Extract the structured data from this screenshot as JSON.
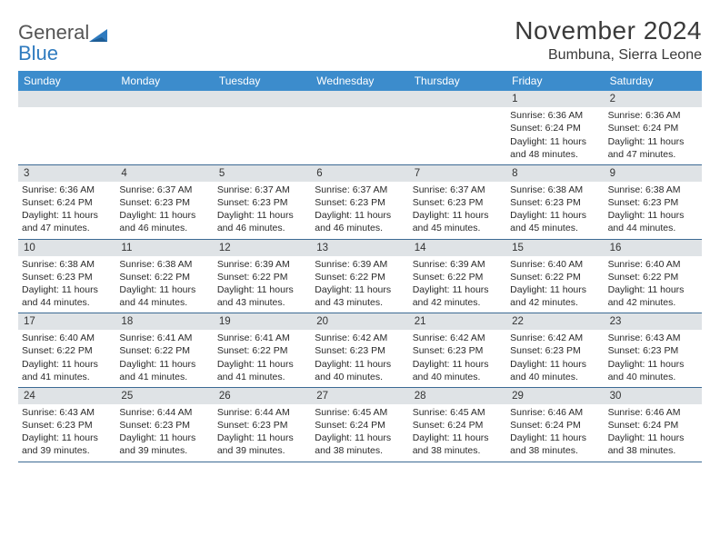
{
  "logo": {
    "line1": "General",
    "line2": "Blue"
  },
  "title": "November 2024",
  "location": "Bumbuna, Sierra Leone",
  "colors": {
    "header_bg": "#3c8ccc",
    "header_text": "#ffffff",
    "daynum_bg": "#dfe3e6",
    "row_border": "#3c6a94",
    "text": "#2a2a2a",
    "logo_gray": "#555555",
    "logo_blue": "#2f7bbf"
  },
  "day_names": [
    "Sunday",
    "Monday",
    "Tuesday",
    "Wednesday",
    "Thursday",
    "Friday",
    "Saturday"
  ],
  "weeks": [
    [
      {
        "n": "",
        "sunrise": "",
        "sunset": "",
        "daylight": ""
      },
      {
        "n": "",
        "sunrise": "",
        "sunset": "",
        "daylight": ""
      },
      {
        "n": "",
        "sunrise": "",
        "sunset": "",
        "daylight": ""
      },
      {
        "n": "",
        "sunrise": "",
        "sunset": "",
        "daylight": ""
      },
      {
        "n": "",
        "sunrise": "",
        "sunset": "",
        "daylight": ""
      },
      {
        "n": "1",
        "sunrise": "Sunrise: 6:36 AM",
        "sunset": "Sunset: 6:24 PM",
        "daylight": "Daylight: 11 hours and 48 minutes."
      },
      {
        "n": "2",
        "sunrise": "Sunrise: 6:36 AM",
        "sunset": "Sunset: 6:24 PM",
        "daylight": "Daylight: 11 hours and 47 minutes."
      }
    ],
    [
      {
        "n": "3",
        "sunrise": "Sunrise: 6:36 AM",
        "sunset": "Sunset: 6:24 PM",
        "daylight": "Daylight: 11 hours and 47 minutes."
      },
      {
        "n": "4",
        "sunrise": "Sunrise: 6:37 AM",
        "sunset": "Sunset: 6:23 PM",
        "daylight": "Daylight: 11 hours and 46 minutes."
      },
      {
        "n": "5",
        "sunrise": "Sunrise: 6:37 AM",
        "sunset": "Sunset: 6:23 PM",
        "daylight": "Daylight: 11 hours and 46 minutes."
      },
      {
        "n": "6",
        "sunrise": "Sunrise: 6:37 AM",
        "sunset": "Sunset: 6:23 PM",
        "daylight": "Daylight: 11 hours and 46 minutes."
      },
      {
        "n": "7",
        "sunrise": "Sunrise: 6:37 AM",
        "sunset": "Sunset: 6:23 PM",
        "daylight": "Daylight: 11 hours and 45 minutes."
      },
      {
        "n": "8",
        "sunrise": "Sunrise: 6:38 AM",
        "sunset": "Sunset: 6:23 PM",
        "daylight": "Daylight: 11 hours and 45 minutes."
      },
      {
        "n": "9",
        "sunrise": "Sunrise: 6:38 AM",
        "sunset": "Sunset: 6:23 PM",
        "daylight": "Daylight: 11 hours and 44 minutes."
      }
    ],
    [
      {
        "n": "10",
        "sunrise": "Sunrise: 6:38 AM",
        "sunset": "Sunset: 6:23 PM",
        "daylight": "Daylight: 11 hours and 44 minutes."
      },
      {
        "n": "11",
        "sunrise": "Sunrise: 6:38 AM",
        "sunset": "Sunset: 6:22 PM",
        "daylight": "Daylight: 11 hours and 44 minutes."
      },
      {
        "n": "12",
        "sunrise": "Sunrise: 6:39 AM",
        "sunset": "Sunset: 6:22 PM",
        "daylight": "Daylight: 11 hours and 43 minutes."
      },
      {
        "n": "13",
        "sunrise": "Sunrise: 6:39 AM",
        "sunset": "Sunset: 6:22 PM",
        "daylight": "Daylight: 11 hours and 43 minutes."
      },
      {
        "n": "14",
        "sunrise": "Sunrise: 6:39 AM",
        "sunset": "Sunset: 6:22 PM",
        "daylight": "Daylight: 11 hours and 42 minutes."
      },
      {
        "n": "15",
        "sunrise": "Sunrise: 6:40 AM",
        "sunset": "Sunset: 6:22 PM",
        "daylight": "Daylight: 11 hours and 42 minutes."
      },
      {
        "n": "16",
        "sunrise": "Sunrise: 6:40 AM",
        "sunset": "Sunset: 6:22 PM",
        "daylight": "Daylight: 11 hours and 42 minutes."
      }
    ],
    [
      {
        "n": "17",
        "sunrise": "Sunrise: 6:40 AM",
        "sunset": "Sunset: 6:22 PM",
        "daylight": "Daylight: 11 hours and 41 minutes."
      },
      {
        "n": "18",
        "sunrise": "Sunrise: 6:41 AM",
        "sunset": "Sunset: 6:22 PM",
        "daylight": "Daylight: 11 hours and 41 minutes."
      },
      {
        "n": "19",
        "sunrise": "Sunrise: 6:41 AM",
        "sunset": "Sunset: 6:22 PM",
        "daylight": "Daylight: 11 hours and 41 minutes."
      },
      {
        "n": "20",
        "sunrise": "Sunrise: 6:42 AM",
        "sunset": "Sunset: 6:23 PM",
        "daylight": "Daylight: 11 hours and 40 minutes."
      },
      {
        "n": "21",
        "sunrise": "Sunrise: 6:42 AM",
        "sunset": "Sunset: 6:23 PM",
        "daylight": "Daylight: 11 hours and 40 minutes."
      },
      {
        "n": "22",
        "sunrise": "Sunrise: 6:42 AM",
        "sunset": "Sunset: 6:23 PM",
        "daylight": "Daylight: 11 hours and 40 minutes."
      },
      {
        "n": "23",
        "sunrise": "Sunrise: 6:43 AM",
        "sunset": "Sunset: 6:23 PM",
        "daylight": "Daylight: 11 hours and 40 minutes."
      }
    ],
    [
      {
        "n": "24",
        "sunrise": "Sunrise: 6:43 AM",
        "sunset": "Sunset: 6:23 PM",
        "daylight": "Daylight: 11 hours and 39 minutes."
      },
      {
        "n": "25",
        "sunrise": "Sunrise: 6:44 AM",
        "sunset": "Sunset: 6:23 PM",
        "daylight": "Daylight: 11 hours and 39 minutes."
      },
      {
        "n": "26",
        "sunrise": "Sunrise: 6:44 AM",
        "sunset": "Sunset: 6:23 PM",
        "daylight": "Daylight: 11 hours and 39 minutes."
      },
      {
        "n": "27",
        "sunrise": "Sunrise: 6:45 AM",
        "sunset": "Sunset: 6:24 PM",
        "daylight": "Daylight: 11 hours and 38 minutes."
      },
      {
        "n": "28",
        "sunrise": "Sunrise: 6:45 AM",
        "sunset": "Sunset: 6:24 PM",
        "daylight": "Daylight: 11 hours and 38 minutes."
      },
      {
        "n": "29",
        "sunrise": "Sunrise: 6:46 AM",
        "sunset": "Sunset: 6:24 PM",
        "daylight": "Daylight: 11 hours and 38 minutes."
      },
      {
        "n": "30",
        "sunrise": "Sunrise: 6:46 AM",
        "sunset": "Sunset: 6:24 PM",
        "daylight": "Daylight: 11 hours and 38 minutes."
      }
    ]
  ]
}
